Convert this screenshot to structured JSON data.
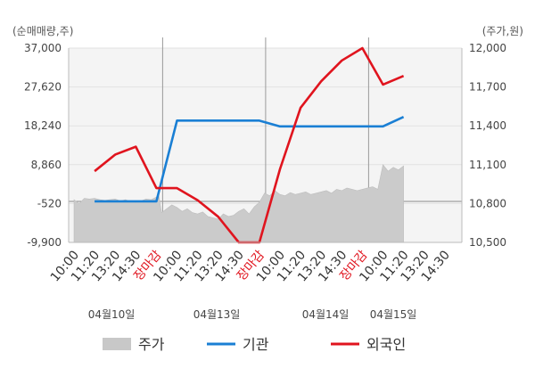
{
  "chart_data": {
    "type": "line",
    "left_unit_label": "(순매매량,주)",
    "right_unit_label": "(주가,원)",
    "left_axis": {
      "ticks": [
        "37,000",
        "27,620",
        "18,240",
        "8,860",
        "-520",
        "-9,900"
      ],
      "tick_values": [
        37000,
        27620,
        18240,
        8860,
        -520,
        -9900
      ],
      "min": -9900,
      "max": 37000
    },
    "right_axis": {
      "ticks": [
        "12,000",
        "11,700",
        "11,400",
        "11,100",
        "10,800",
        "10,500"
      ],
      "tick_values": [
        12000,
        11700,
        11400,
        11100,
        10800,
        10500
      ],
      "min": 10500,
      "max": 12000
    },
    "x_tick_labels": [
      {
        "label": "10:00",
        "red": false
      },
      {
        "label": "11:20",
        "red": false
      },
      {
        "label": "13:20",
        "red": false
      },
      {
        "label": "14:30",
        "red": false
      },
      {
        "label": "장마감",
        "red": true
      },
      {
        "label": "10:00",
        "red": false
      },
      {
        "label": "11:20",
        "red": false
      },
      {
        "label": "13:20",
        "red": false
      },
      {
        "label": "14:30",
        "red": false
      },
      {
        "label": "장마감",
        "red": true
      },
      {
        "label": "10:00",
        "red": false
      },
      {
        "label": "11:20",
        "red": false
      },
      {
        "label": "13:20",
        "red": false
      },
      {
        "label": "14:30",
        "red": false
      },
      {
        "label": "장마감",
        "red": true
      },
      {
        "label": "10:00",
        "red": false
      },
      {
        "label": "11:20",
        "red": false
      },
      {
        "label": "13:20",
        "red": false
      },
      {
        "label": "14:30",
        "red": false
      }
    ],
    "date_labels": [
      "04월10일",
      "04월13일",
      "04월14일",
      "04월15일"
    ],
    "legend": [
      {
        "name": "주가",
        "color": "#c8c8c8",
        "shape": "box"
      },
      {
        "name": "기관",
        "color": "#1a7fd4",
        "shape": "line"
      },
      {
        "name": "외국인",
        "color": "#e0141e",
        "shape": "line"
      }
    ],
    "series": [
      {
        "name": "기관",
        "axis": "left",
        "x": [
          1,
          2,
          3,
          4,
          5,
          6,
          7,
          8,
          9,
          10,
          11,
          12,
          13,
          14,
          15,
          16
        ],
        "values": [
          0,
          0,
          0,
          0,
          19500,
          19500,
          19500,
          19500,
          19500,
          18100,
          18100,
          18100,
          18100,
          18100,
          18100,
          20400
        ]
      },
      {
        "name": "외국인",
        "axis": "left",
        "x": [
          1,
          2,
          3,
          4,
          5,
          6,
          7,
          8,
          9,
          10,
          11,
          12,
          13,
          14,
          15,
          16
        ],
        "values": [
          7300,
          11300,
          13200,
          3200,
          3200,
          300,
          -3700,
          -9900,
          -9900,
          7800,
          22600,
          29000,
          34000,
          37000,
          28200,
          30300
        ]
      },
      {
        "name": "주가",
        "axis": "right",
        "type": "area",
        "x": [
          0,
          0.25,
          0.5,
          0.75,
          1,
          1.25,
          1.5,
          1.75,
          2,
          2.25,
          2.5,
          2.75,
          3,
          3.25,
          3.5,
          3.75,
          4,
          4.1,
          4.25,
          4.5,
          4.75,
          5,
          5.25,
          5.5,
          5.75,
          6,
          6.25,
          6.5,
          6.75,
          7,
          7.25,
          7.5,
          7.75,
          8,
          8.25,
          8.5,
          8.75,
          9,
          9.25,
          9.5,
          9.75,
          10,
          10.25,
          10.5,
          10.75,
          11,
          11.25,
          11.5,
          11.75,
          12,
          12.25,
          12.5,
          12.75,
          13,
          13.25,
          13.5,
          13.75,
          14,
          14.25,
          14.5,
          14.75,
          15,
          15.25,
          15.5,
          15.75,
          16
        ],
        "values": [
          10830,
          10800,
          10840,
          10835,
          10840,
          10830,
          10825,
          10830,
          10835,
          10820,
          10830,
          10815,
          10810,
          10820,
          10835,
          10830,
          10850,
          10880,
          10730,
          10760,
          10790,
          10770,
          10740,
          10760,
          10730,
          10720,
          10735,
          10700,
          10690,
          10680,
          10720,
          10700,
          10710,
          10740,
          10760,
          10720,
          10775,
          10810,
          10880,
          10860,
          10900,
          10870,
          10860,
          10885,
          10870,
          10880,
          10890,
          10870,
          10880,
          10890,
          10900,
          10880,
          10910,
          10900,
          10920,
          10910,
          10900,
          10910,
          10920,
          10930,
          10910,
          11100,
          11050,
          11080,
          11060,
          11090
        ]
      }
    ],
    "grid": true
  }
}
